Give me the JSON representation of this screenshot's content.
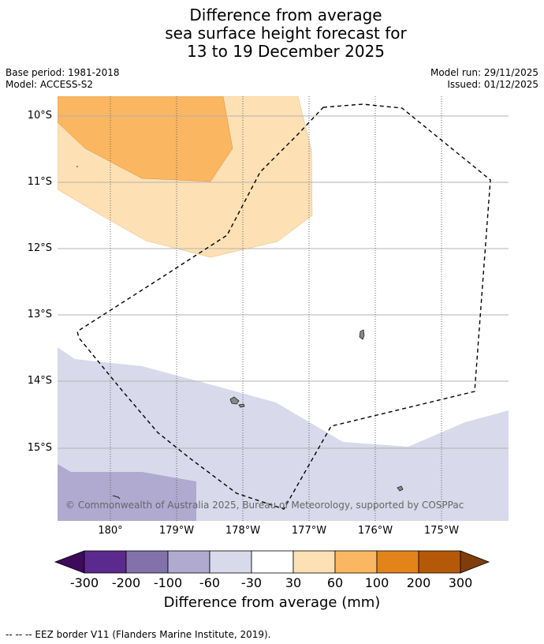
{
  "title_lines": [
    "Difference from average",
    "sea surface height forecast for",
    "13 to 19 December 2025"
  ],
  "base_period": "Base period: 1981-2018",
  "model": "Model: ACCESS-S2",
  "model_run": "Model run: 29/11/2025",
  "issued": "Issued: 01/12/2025",
  "map": {
    "lat_labels": [
      "10°S",
      "11°S",
      "12°S",
      "13°S",
      "14°S",
      "15°S"
    ],
    "lon_labels": [
      "180°",
      "179°W",
      "178°W",
      "177°W",
      "176°W",
      "175°W"
    ],
    "copyright": "© Commonwealth of Australia 2025, Bureau of Meteorology, supported by COSPPac"
  },
  "colorbar": {
    "ticks": [
      "-300",
      "-200",
      "-100",
      "-60",
      "-30",
      "30",
      "60",
      "100",
      "200",
      "300"
    ],
    "colors": [
      "#3d0a5c",
      "#5b2a8e",
      "#8371ab",
      "#b0a9d0",
      "#d8d9ea",
      "#ffffff",
      "#fde0b4",
      "#fbb661",
      "#e28419",
      "#b45907",
      "#7f3d0b"
    ],
    "label": "Difference from average (mm)"
  },
  "footer": "--  --  -- EEZ border V11 (Flanders Marine Institute, 2019)."
}
